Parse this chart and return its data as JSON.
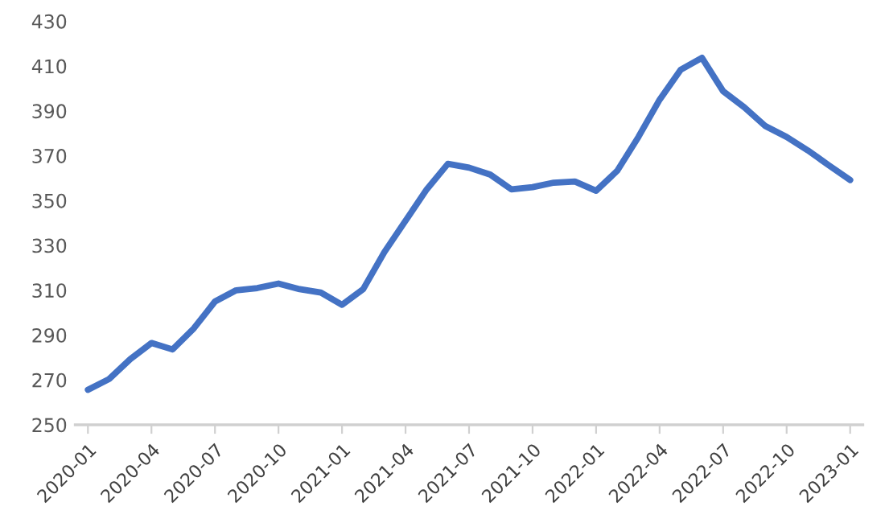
{
  "chart_data": {
    "type": "line",
    "categories": [
      "2020-01",
      null,
      null,
      "2020-04",
      null,
      null,
      "2020-07",
      null,
      null,
      "2020-10",
      null,
      null,
      "2021-01",
      null,
      null,
      "2021-04",
      null,
      null,
      "2021-07",
      null,
      null,
      "2021-10",
      null,
      null,
      "2022-01",
      null,
      null,
      "2022-04",
      null,
      null,
      "2022-07",
      null,
      null,
      "2022-10",
      null,
      null,
      "2023-01"
    ],
    "series": [
      {
        "color": "#4472c4",
        "values": [
          265.6,
          270.4,
          279.3,
          286.5,
          283.6,
          293,
          305,
          310,
          311,
          313,
          310.5,
          309,
          303.5,
          310.5,
          327,
          341,
          355,
          366.4,
          364.7,
          361.6,
          355,
          356,
          358,
          358.5,
          354.4,
          363.3,
          378.4,
          395,
          408.4,
          413.7,
          398.8,
          391.6,
          383.2,
          378.4,
          372.4,
          365.7,
          359.2
        ]
      }
    ],
    "ylim": [
      250,
      430
    ],
    "yticks": [
      250,
      270,
      290,
      310,
      330,
      350,
      370,
      390,
      410,
      430
    ],
    "grid": false,
    "marker": "none",
    "line_style": "solid"
  }
}
